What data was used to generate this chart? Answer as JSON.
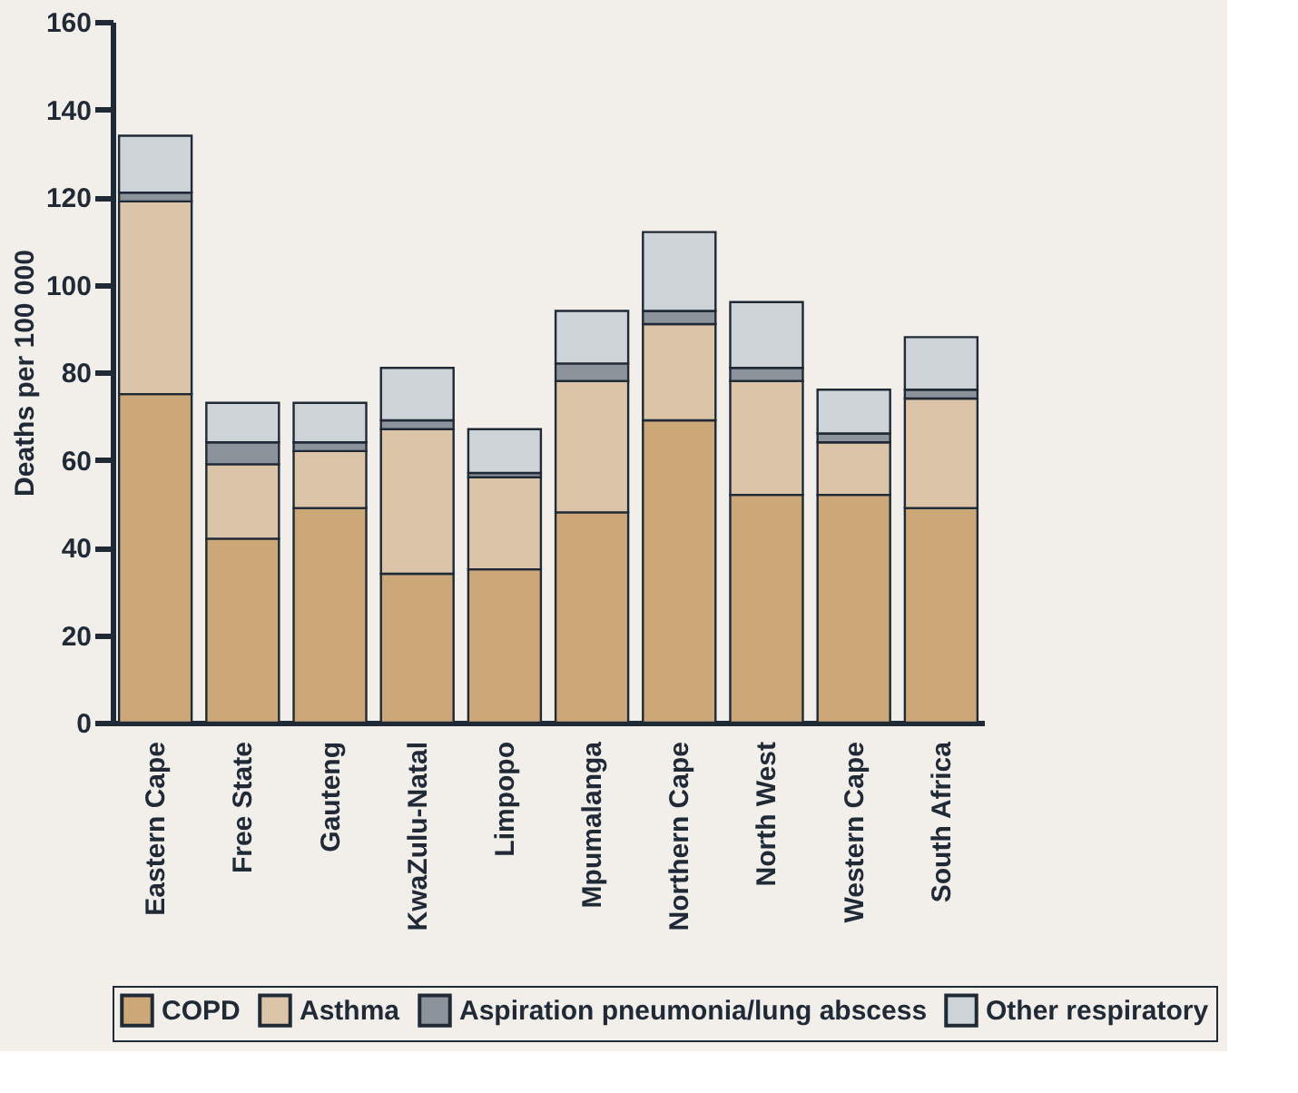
{
  "chart_data": {
    "type": "bar",
    "stacked": true,
    "ylabel": "Deaths per 100 000",
    "categories": [
      "Eastern Cape",
      "Free State",
      "Gauteng",
      "KwaZulu-Natal",
      "Limpopo",
      "Mpumalanga",
      "Northern Cape",
      "North West",
      "Western Cape",
      "South Africa"
    ],
    "series": [
      {
        "name": "COPD",
        "color": "#cca778",
        "values": [
          75,
          42,
          49,
          34,
          35,
          48,
          69,
          52,
          52,
          49
        ]
      },
      {
        "name": "Asthma",
        "color": "#dbc4a8",
        "values": [
          44,
          17,
          13,
          33,
          21,
          30,
          22,
          26,
          12,
          25
        ]
      },
      {
        "name": "Aspiration pneumonia/lung abscess",
        "color": "#8c939a",
        "values": [
          2,
          5,
          2,
          2,
          1,
          4,
          3,
          3,
          2,
          2
        ]
      },
      {
        "name": "Other respiratory",
        "color": "#ced3d7",
        "values": [
          13,
          9,
          9,
          12,
          10,
          12,
          18,
          15,
          10,
          12
        ]
      }
    ],
    "ylim": [
      0,
      160
    ],
    "yticks": [
      0,
      20,
      40,
      60,
      80,
      100,
      120,
      140,
      160
    ],
    "grid": false,
    "legend": "bottom"
  }
}
